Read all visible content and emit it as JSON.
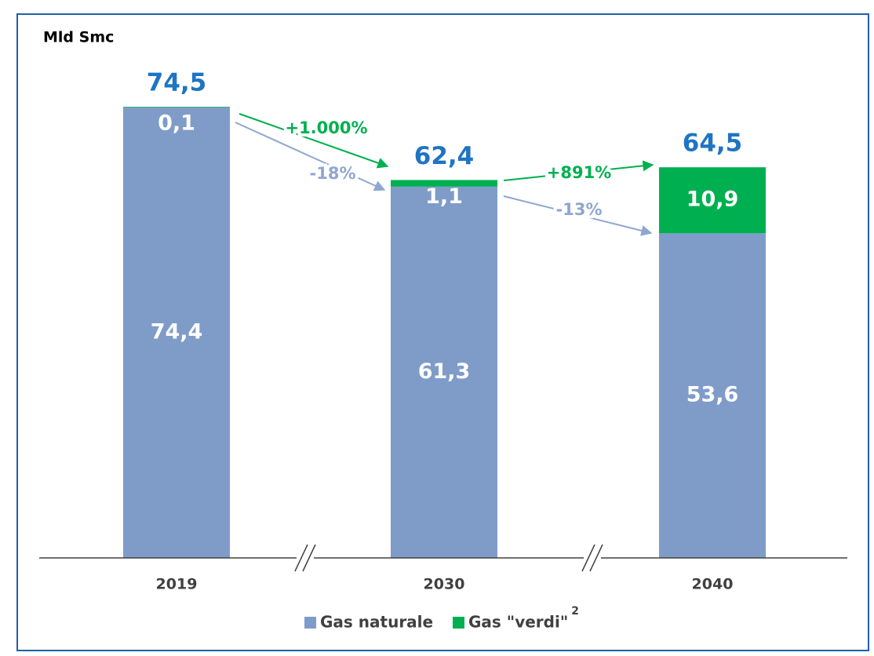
{
  "chart_data": {
    "type": "stacked_bar",
    "ylabel": "Mld Smc",
    "categories": [
      "2019",
      "2030",
      "2040"
    ],
    "series": [
      {
        "name": "Gas naturale",
        "color": "#7f9cc9",
        "values": [
          74.4,
          61.3,
          53.6
        ],
        "value_labels": [
          "74,4",
          "61,3",
          "53,6"
        ]
      },
      {
        "name": "Gas \"verdi\"",
        "color": "#00b050",
        "values": [
          0.1,
          1.1,
          10.9
        ],
        "value_labels": [
          "0,1",
          "1,1",
          "10,9"
        ]
      }
    ],
    "totals": [
      74.5,
      62.4,
      64.5
    ],
    "total_labels": [
      "74,5",
      "62,4",
      "64,5"
    ],
    "annotations": [
      "+1.000%",
      "-18%",
      "+891%",
      "-13%"
    ],
    "legend_footnote": "2",
    "ylim": [
      0,
      74.5
    ]
  }
}
